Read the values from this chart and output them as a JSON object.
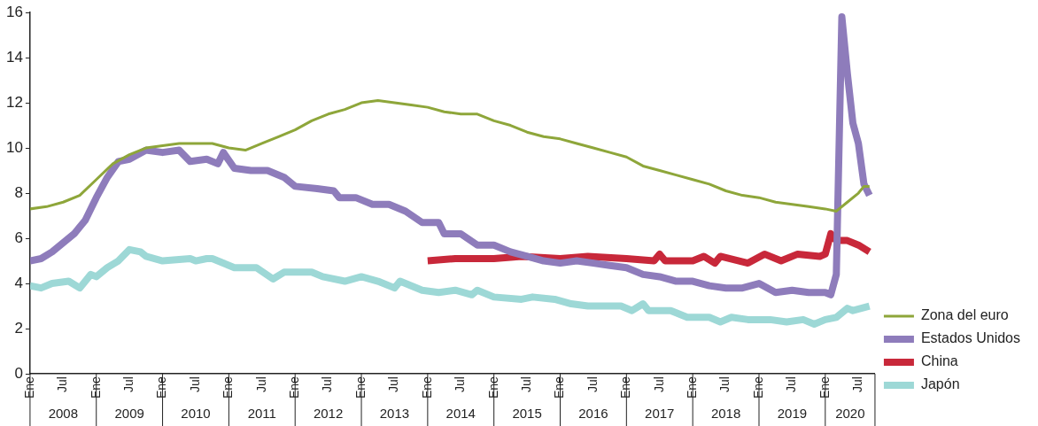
{
  "chart_data": {
    "type": "line",
    "legend": "right",
    "grid": false,
    "marker": "none",
    "line_style": "solid",
    "xlim": [
      "2008-01",
      "2020-10"
    ],
    "xticks": [
      {
        "value": "2008-01",
        "label": "Ene"
      },
      {
        "value": "2008-07",
        "label": "Jul"
      },
      {
        "value": "2009-01",
        "label": "Ene"
      },
      {
        "value": "2009-07",
        "label": "Jul"
      },
      {
        "value": "2010-01",
        "label": "Ene"
      },
      {
        "value": "2010-07",
        "label": "Jul"
      },
      {
        "value": "2011-01",
        "label": "Ene"
      },
      {
        "value": "2011-07",
        "label": "Jul"
      },
      {
        "value": "2012-01",
        "label": "Ene"
      },
      {
        "value": "2012-07",
        "label": "Jul"
      },
      {
        "value": "2013-01",
        "label": "Ene"
      },
      {
        "value": "2013-07",
        "label": "Jul"
      },
      {
        "value": "2014-01",
        "label": "Ene"
      },
      {
        "value": "2014-07",
        "label": "Jul"
      },
      {
        "value": "2015-01",
        "label": "Ene"
      },
      {
        "value": "2015-07",
        "label": "Jul"
      },
      {
        "value": "2016-01",
        "label": "Ene"
      },
      {
        "value": "2016-07",
        "label": "Jul"
      },
      {
        "value": "2017-01",
        "label": "Ene"
      },
      {
        "value": "2017-07",
        "label": "Jul"
      },
      {
        "value": "2018-01",
        "label": "Ene"
      },
      {
        "value": "2018-07",
        "label": "Jul"
      },
      {
        "value": "2019-01",
        "label": "Ene"
      },
      {
        "value": "2019-07",
        "label": "Jul"
      },
      {
        "value": "2020-01",
        "label": "Ene"
      },
      {
        "value": "2020-07",
        "label": "Jul"
      }
    ],
    "ylim": [
      0,
      16
    ],
    "yticks": [
      0,
      2,
      4,
      6,
      8,
      10,
      12,
      14,
      16
    ],
    "annotations": [
      "2008",
      "2009",
      "2010",
      "2011",
      "2012",
      "2013",
      "2014",
      "2015",
      "2016",
      "2017",
      "2018",
      "2019",
      "2020"
    ],
    "series": [
      {
        "name": "Zona del euro",
        "color": "#8ea63a",
        "x": [
          "2008-01",
          "2008-04",
          "2008-07",
          "2008-10",
          "2009-01",
          "2009-04",
          "2009-07",
          "2009-10",
          "2010-01",
          "2010-04",
          "2010-07",
          "2010-10",
          "2011-01",
          "2011-04",
          "2011-07",
          "2011-10",
          "2012-01",
          "2012-04",
          "2012-07",
          "2012-10",
          "2013-01",
          "2013-04",
          "2013-07",
          "2013-10",
          "2014-01",
          "2014-04",
          "2014-07",
          "2014-10",
          "2015-01",
          "2015-04",
          "2015-07",
          "2015-10",
          "2016-01",
          "2016-04",
          "2016-07",
          "2016-10",
          "2017-01",
          "2017-04",
          "2017-07",
          "2017-10",
          "2018-01",
          "2018-04",
          "2018-07",
          "2018-10",
          "2019-01",
          "2019-04",
          "2019-07",
          "2019-10",
          "2020-01",
          "2020-03",
          "2020-05",
          "2020-07",
          "2020-08",
          "2020-09"
        ],
        "values": [
          7.3,
          7.4,
          7.6,
          7.9,
          8.6,
          9.3,
          9.7,
          10.0,
          10.1,
          10.2,
          10.2,
          10.2,
          10.0,
          9.9,
          10.2,
          10.5,
          10.8,
          11.2,
          11.5,
          11.7,
          12.0,
          12.1,
          12.0,
          11.9,
          11.8,
          11.6,
          11.5,
          11.5,
          11.2,
          11.0,
          10.7,
          10.5,
          10.4,
          10.2,
          10.0,
          9.8,
          9.6,
          9.2,
          9.0,
          8.8,
          8.6,
          8.4,
          8.1,
          7.9,
          7.8,
          7.6,
          7.5,
          7.4,
          7.3,
          7.2,
          7.6,
          8.0,
          8.3,
          8.3
        ]
      },
      {
        "name": "Estados Unidos",
        "color": "#8e7cbb",
        "x": [
          "2008-01",
          "2008-03",
          "2008-05",
          "2008-07",
          "2008-09",
          "2008-11",
          "2009-01",
          "2009-03",
          "2009-05",
          "2009-07",
          "2009-10",
          "2010-01",
          "2010-04",
          "2010-06",
          "2010-09",
          "2010-11",
          "2010-12",
          "2011-02",
          "2011-05",
          "2011-08",
          "2011-11",
          "2012-01",
          "2012-05",
          "2012-08",
          "2012-09",
          "2012-12",
          "2013-03",
          "2013-06",
          "2013-09",
          "2013-12",
          "2014-03",
          "2014-04",
          "2014-07",
          "2014-10",
          "2015-01",
          "2015-04",
          "2015-07",
          "2015-10",
          "2016-01",
          "2016-04",
          "2016-07",
          "2016-10",
          "2017-01",
          "2017-04",
          "2017-07",
          "2017-10",
          "2018-01",
          "2018-04",
          "2018-07",
          "2018-10",
          "2019-01",
          "2019-04",
          "2019-07",
          "2019-10",
          "2020-01",
          "2020-02",
          "2020-03",
          "2020-04",
          "2020-05",
          "2020-06",
          "2020-07",
          "2020-08",
          "2020-09"
        ],
        "values": [
          5.0,
          5.1,
          5.4,
          5.8,
          6.2,
          6.8,
          7.8,
          8.7,
          9.4,
          9.5,
          9.9,
          9.8,
          9.9,
          9.4,
          9.5,
          9.3,
          9.8,
          9.1,
          9.0,
          9.0,
          8.7,
          8.3,
          8.2,
          8.1,
          7.8,
          7.8,
          7.5,
          7.5,
          7.2,
          6.7,
          6.7,
          6.2,
          6.2,
          5.7,
          5.7,
          5.4,
          5.2,
          5.0,
          4.9,
          5.0,
          4.9,
          4.8,
          4.7,
          4.4,
          4.3,
          4.1,
          4.1,
          3.9,
          3.8,
          3.8,
          4.0,
          3.6,
          3.7,
          3.6,
          3.6,
          3.5,
          4.4,
          15.8,
          13.3,
          11.1,
          10.2,
          8.4,
          7.9
        ]
      },
      {
        "name": "China",
        "color": "#c8283a",
        "x": [
          "2014-01",
          "2014-06",
          "2015-01",
          "2015-06",
          "2016-01",
          "2016-06",
          "2017-01",
          "2017-06",
          "2017-07",
          "2017-08",
          "2018-01",
          "2018-03",
          "2018-05",
          "2018-06",
          "2018-11",
          "2019-02",
          "2019-05",
          "2019-08",
          "2019-12",
          "2020-01",
          "2020-02",
          "2020-03",
          "2020-05",
          "2020-07",
          "2020-09"
        ],
        "values": [
          5.0,
          5.1,
          5.1,
          5.2,
          5.1,
          5.2,
          5.1,
          5.0,
          5.3,
          5.0,
          5.0,
          5.2,
          4.9,
          5.2,
          4.9,
          5.3,
          5.0,
          5.3,
          5.2,
          5.3,
          6.2,
          5.9,
          5.9,
          5.7,
          5.4
        ]
      },
      {
        "name": "Japón",
        "color": "#9dd8d6",
        "x": [
          "2008-01",
          "2008-03",
          "2008-05",
          "2008-08",
          "2008-10",
          "2008-12",
          "2009-01",
          "2009-03",
          "2009-05",
          "2009-07",
          "2009-09",
          "2009-10",
          "2010-01",
          "2010-06",
          "2010-07",
          "2010-09",
          "2010-10",
          "2011-02",
          "2011-06",
          "2011-09",
          "2011-11",
          "2012-04",
          "2012-06",
          "2012-10",
          "2013-01",
          "2013-04",
          "2013-07",
          "2013-08",
          "2013-12",
          "2014-03",
          "2014-06",
          "2014-09",
          "2014-10",
          "2015-01",
          "2015-06",
          "2015-08",
          "2015-12",
          "2016-03",
          "2016-06",
          "2016-12",
          "2017-02",
          "2017-04",
          "2017-05",
          "2017-09",
          "2017-12",
          "2018-04",
          "2018-06",
          "2018-08",
          "2018-11",
          "2019-03",
          "2019-06",
          "2019-09",
          "2019-11",
          "2020-01",
          "2020-03",
          "2020-05",
          "2020-06",
          "2020-09"
        ],
        "values": [
          3.9,
          3.8,
          4.0,
          4.1,
          3.8,
          4.4,
          4.3,
          4.7,
          5.0,
          5.5,
          5.4,
          5.2,
          5.0,
          5.1,
          5.0,
          5.1,
          5.1,
          4.7,
          4.7,
          4.2,
          4.5,
          4.5,
          4.3,
          4.1,
          4.3,
          4.1,
          3.8,
          4.1,
          3.7,
          3.6,
          3.7,
          3.5,
          3.7,
          3.4,
          3.3,
          3.4,
          3.3,
          3.1,
          3.0,
          3.0,
          2.8,
          3.1,
          2.8,
          2.8,
          2.5,
          2.5,
          2.3,
          2.5,
          2.4,
          2.4,
          2.3,
          2.4,
          2.2,
          2.4,
          2.5,
          2.9,
          2.8,
          3.0
        ]
      }
    ]
  }
}
